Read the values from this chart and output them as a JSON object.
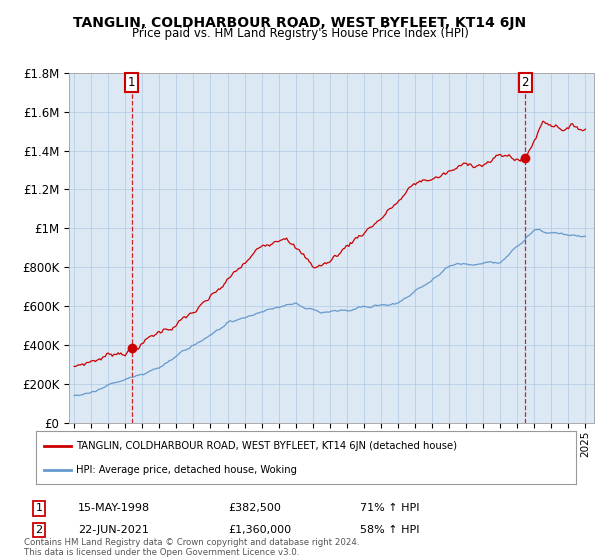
{
  "title": "TANGLIN, COLDHARBOUR ROAD, WEST BYFLEET, KT14 6JN",
  "subtitle": "Price paid vs. HM Land Registry's House Price Index (HPI)",
  "ylim": [
    0,
    1800000
  ],
  "yticks": [
    0,
    200000,
    400000,
    600000,
    800000,
    1000000,
    1200000,
    1400000,
    1600000,
    1800000
  ],
  "ytick_labels": [
    "£0",
    "£200K",
    "£400K",
    "£600K",
    "£800K",
    "£1M",
    "£1.2M",
    "£1.4M",
    "£1.6M",
    "£1.8M"
  ],
  "hpi_color": "#6699cc",
  "price_color": "#cc0000",
  "chart_bg": "#dce9f5",
  "marker1_x": 1998.37,
  "marker1_price": 382500,
  "marker2_x": 2021.47,
  "marker2_price": 1360000,
  "legend_label1": "TANGLIN, COLDHARBOUR ROAD, WEST BYFLEET, KT14 6JN (detached house)",
  "legend_label2": "HPI: Average price, detached house, Woking",
  "ann1_date": "15-MAY-1998",
  "ann1_price": "£382,500",
  "ann1_hpi": "71% ↑ HPI",
  "ann2_date": "22-JUN-2021",
  "ann2_price": "£1,360,000",
  "ann2_hpi": "58% ↑ HPI",
  "footnote": "Contains HM Land Registry data © Crown copyright and database right 2024.\nThis data is licensed under the Open Government Licence v3.0.",
  "grid_color": "#b0c8e0",
  "xlim_min": 1994.7,
  "xlim_max": 2025.5,
  "xtick_start": 1995,
  "xtick_end": 2025
}
